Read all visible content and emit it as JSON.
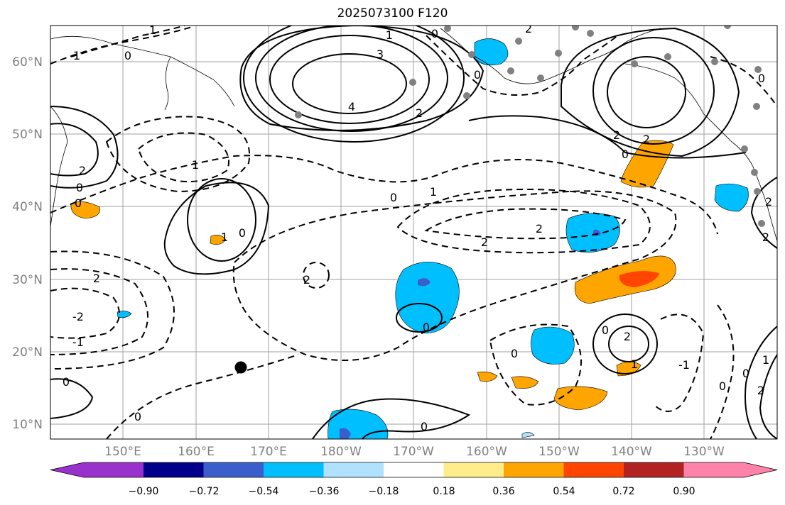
{
  "title": "2025073100 F120",
  "lat_labels": [
    "60°N",
    "50°N",
    "40°N",
    "30°N",
    "20°N",
    "10°N"
  ],
  "lon_labels": [
    "150°E",
    "160°E",
    "170°E",
    "180°W",
    "170°W",
    "160°W",
    "150°W",
    "140°W",
    "130°W"
  ],
  "colorbar": {
    "ticks": [
      "−0.90",
      "−0.72",
      "−0.54",
      "−0.36",
      "−0.18",
      "0.18",
      "0.36",
      "0.54",
      "0.72",
      "0.90"
    ],
    "colors": [
      "#9932cc",
      "#00008b",
      "#3a5fcd",
      "#00bfff",
      "#b0e2ff",
      "#ffffff",
      "#ffec8b",
      "#ffa500",
      "#ff4500",
      "#b22222",
      "#ff82ab"
    ]
  },
  "contour_labels": {
    "c4": "4",
    "c3": "3",
    "c2": "2",
    "c1": "1",
    "c0": "0",
    "n1": "-1",
    "n2": "-2"
  }
}
